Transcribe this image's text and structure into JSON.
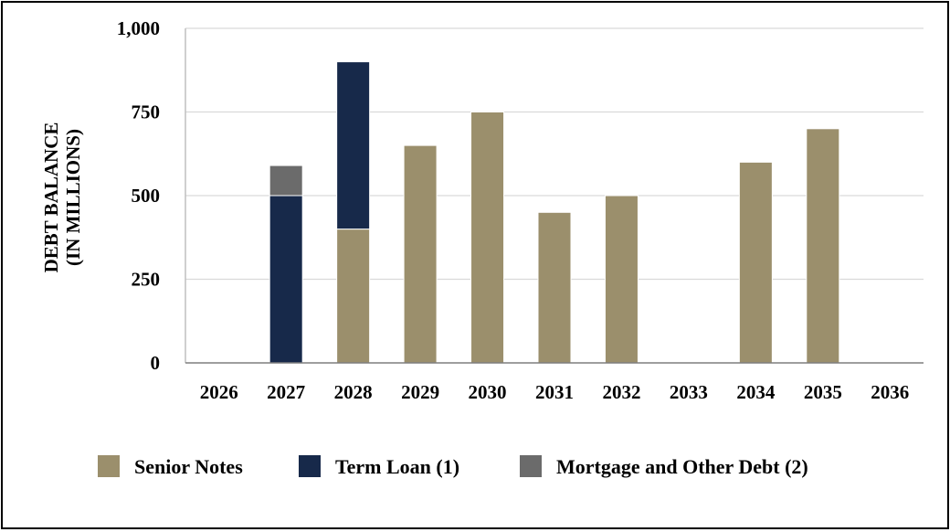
{
  "chart_data": {
    "type": "bar",
    "stacked": true,
    "title": "",
    "xlabel": "",
    "ylabel_lines": [
      "DEBT BALANCE",
      "(IN MILLIONS)"
    ],
    "ylim": [
      0,
      1000
    ],
    "yticks": [
      0,
      250,
      500,
      750,
      1000
    ],
    "ytick_labels": [
      "0",
      "250",
      "500",
      "750",
      "1,000"
    ],
    "grid": true,
    "legend_position": "bottom",
    "categories": [
      "2026",
      "2027",
      "2028",
      "2029",
      "2030",
      "2031",
      "2032",
      "2033",
      "2034",
      "2035",
      "2036"
    ],
    "series": [
      {
        "name": "Senior Notes",
        "color": "#9b8f6c",
        "values": [
          0,
          0,
          400,
          650,
          750,
          450,
          500,
          0,
          600,
          700,
          0
        ]
      },
      {
        "name": "Term Loan (1)",
        "color": "#17294a",
        "values": [
          0,
          500,
          500,
          0,
          0,
          0,
          0,
          0,
          0,
          0,
          0
        ]
      },
      {
        "name": "Mortgage and Other Debt (2)",
        "color": "#6b6b6b",
        "values": [
          0,
          90,
          0,
          0,
          0,
          0,
          0,
          0,
          0,
          0,
          0
        ]
      }
    ]
  }
}
